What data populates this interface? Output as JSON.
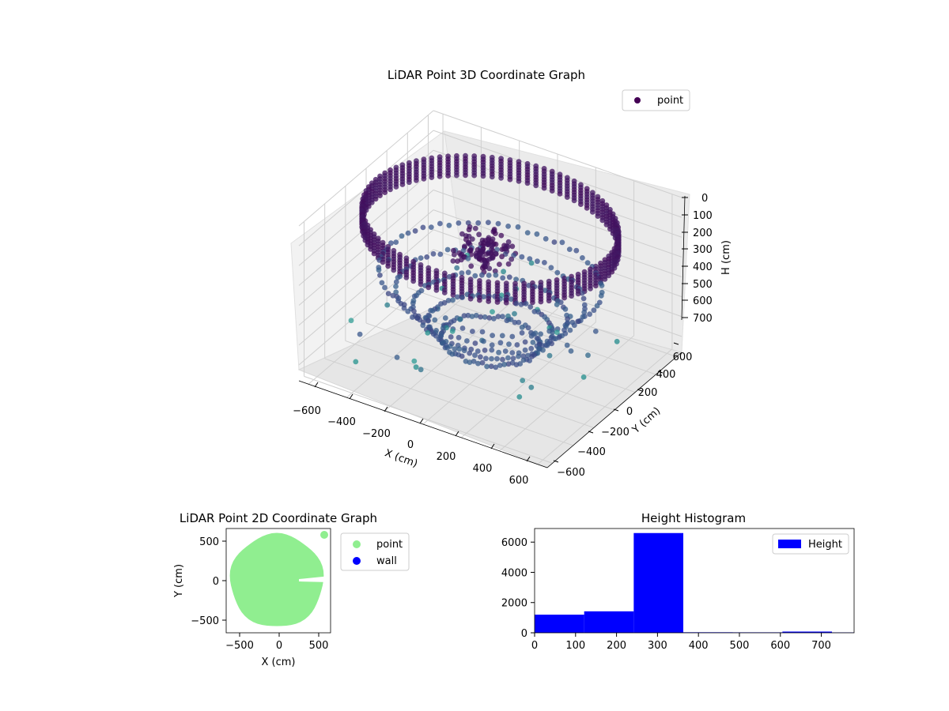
{
  "colors": {
    "viridis_low": "#440154",
    "viridis_mid": "#3b528b",
    "viridis_teal": "#21918c",
    "viridis_light": "#73d0c0",
    "point_2d": "#90ee90",
    "wall_2d": "#0000ff",
    "hist_bar": "#0000ff",
    "pane": "#f2f2f2",
    "grid": "#d0d0d0"
  },
  "chart_data": [
    {
      "type": "scatter",
      "title": "LiDAR Point 3D Coordinate Graph",
      "xlabel": "X (cm)",
      "ylabel": "Y (cm)",
      "zlabel": "H (cm)",
      "x_ticks": [
        "−600",
        "−400",
        "−200",
        "0",
        "200",
        "400",
        "600"
      ],
      "y_ticks": [
        "−600",
        "−400",
        "−200",
        "0",
        "200",
        "400",
        "600"
      ],
      "z_ticks": [
        "0",
        "100",
        "200",
        "300",
        "400",
        "500",
        "600",
        "700"
      ],
      "xlim": [
        -650,
        650
      ],
      "ylim": [
        -650,
        650
      ],
      "zlim": [
        0,
        780
      ],
      "z_axis_inverted": true,
      "legend": [
        "point"
      ],
      "legend_position": "top-right",
      "colormap": "viridis",
      "grid": true,
      "structure_description": "Ring-shaped point cloud: wall of radius ~600 cm near H 0-100, inner object cluster near the center at H ~250-300, concentric floor rings of decreasing radius at H 300-700, sparse outliers."
    },
    {
      "type": "scatter",
      "title": "LiDAR Point 2D Coordinate Graph",
      "xlabel": "X (cm)",
      "ylabel": "Y (cm)",
      "x_ticks": [
        "−500",
        "0",
        "500"
      ],
      "y_ticks": [
        "−500",
        "0",
        "500"
      ],
      "xlim": [
        -660,
        660
      ],
      "ylim": [
        -660,
        660
      ],
      "series": [
        {
          "name": "point",
          "color": "#90ee90",
          "shape": "filled disc, radius ~600 cm, centered near (0,0), slit along +X at Y≈0"
        },
        {
          "name": "wall",
          "color": "#0000ff",
          "points": []
        }
      ],
      "legend_position": "right-outside"
    },
    {
      "type": "bar",
      "title": "Height Histogram",
      "legend": [
        "Height"
      ],
      "legend_position": "top-right",
      "x_ticks": [
        "0",
        "100",
        "200",
        "300",
        "400",
        "500",
        "600",
        "700"
      ],
      "y_ticks": [
        "0",
        "2000",
        "4000",
        "6000"
      ],
      "xlim": [
        0,
        780
      ],
      "ylim": [
        0,
        6900
      ],
      "bins": [
        {
          "from": 0,
          "to": 121,
          "count": 1200
        },
        {
          "from": 121,
          "to": 242,
          "count": 1420
        },
        {
          "from": 242,
          "to": 363,
          "count": 6600
        },
        {
          "from": 363,
          "to": 484,
          "count": 35
        },
        {
          "from": 484,
          "to": 605,
          "count": 30
        },
        {
          "from": 605,
          "to": 726,
          "count": 80
        },
        {
          "from": 726,
          "to": 780,
          "count": 25
        }
      ]
    }
  ]
}
